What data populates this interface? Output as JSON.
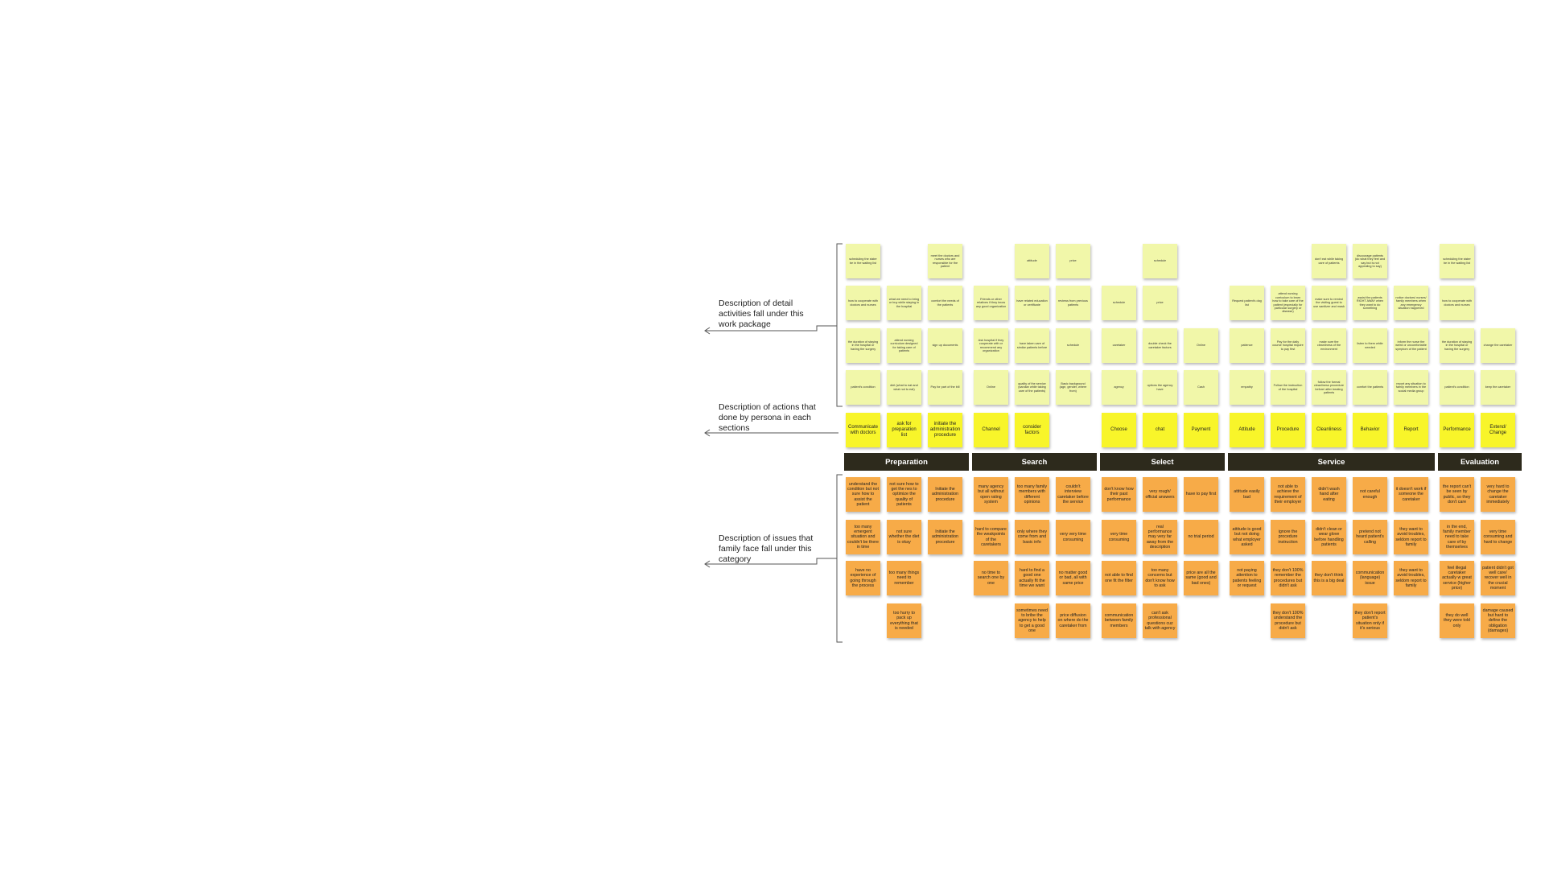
{
  "labels": {
    "detail": "Description of detail activities fall under this work package",
    "actions": "Description of actions that done by persona in each sections",
    "issues": "Description of issues that family face fall under this category"
  },
  "colors": {
    "detail_note": "#f1f7a9",
    "action_note": "#f8f52a",
    "issue_note": "#f7ab48",
    "header_bg": "#2d2a1c",
    "header_text": "#ffffff"
  },
  "sections": [
    {
      "name": "Preparation",
      "columns": [
        {
          "action": "Communicate with doctors",
          "details": [
            "scheduling the sister be in the waiting list",
            "how to cooperate with doctors and nurses",
            "the duration of staying in the hospital or having the surgery",
            "patient's condition"
          ],
          "issues": [
            "understand the condition but not sure how to assist the patient",
            "too many emergent situation and couldn't be there in time",
            "have no experience of going through the process",
            ""
          ]
        },
        {
          "action": "ask for preparation list",
          "details": [
            "",
            "what we need to bring or buy while staying in the hospital",
            "attend nursing curriculum designed for taking care of patients",
            "diet (what to eat and what not to eat)"
          ],
          "issues": [
            "not sure how to get the nes to optimize the quality of patients",
            "not sure whether the diet is okay",
            "too many things need to remember",
            "too hurry to pack up everything that is needed"
          ]
        },
        {
          "action": "initiate the administration procedure",
          "details": [
            "meet the doctors and nurses who are responsible for the patient",
            "comfort the needs of the patients",
            "sign up documents",
            "Pay for part of the bill"
          ],
          "issues": [
            "Initiate the administration procedure",
            "Initiate the administration procedure",
            "",
            ""
          ]
        }
      ]
    },
    {
      "name": "Search",
      "columns": [
        {
          "action": "Channel",
          "details": [
            "",
            "Friends or other relatives if they know any good organization",
            "Ask hospital if they cooperate with or recommend any organization",
            "Online"
          ],
          "issues": [
            "many agency but all without open rating system",
            "hard to compare the weakpoints of the caretakers",
            "no time to search one by one",
            ""
          ]
        },
        {
          "action": "consider factors",
          "details": [
            "attitude",
            "have related education or certificate",
            "have taken care of similar patients before",
            "quality of the service (sandiar while taking care of the patients)"
          ],
          "issues": [
            "too many family members with different opinions",
            "only where they come from and basic info",
            "hard to find a good one actually fit the time we want",
            "sometimes need to bribe the agency to help to get a good one"
          ]
        },
        {
          "action": "",
          "details": [
            "price",
            "reviews from previous patients",
            "schedule",
            "Basic background (age, gender, where from)"
          ],
          "issues": [
            "couldn't interview caretaker before the service",
            "very very time consuming",
            "no matter good or bad, all with same price",
            "price diffusion on where do the caretaker from"
          ]
        }
      ]
    },
    {
      "name": "Select",
      "columns": [
        {
          "action": "Choose",
          "details": [
            "",
            "schedule",
            "caretaker",
            "agency"
          ],
          "issues": [
            "don't know how their past performance",
            "very time consuming",
            "not able to find one fit the filter",
            "communication between family members"
          ]
        },
        {
          "action": "chat",
          "details": [
            "schedule",
            "price",
            "double check the caretaker factors",
            "options the agency have"
          ],
          "issues": [
            "very rough/ official answers",
            "real performance may very far away from the description",
            "too many concerns but don't know how to ask",
            "can't ask professional questions cuz talk with agency"
          ]
        },
        {
          "action": "Payment",
          "details": [
            "",
            "",
            "Online",
            "Cash"
          ],
          "issues": [
            "have to pay first",
            "no trial period",
            "price are all the same (good and bad ones)",
            ""
          ]
        }
      ]
    },
    {
      "name": "Service",
      "columns": [
        {
          "action": "Attitude",
          "details": [
            "",
            "Request patient's dog list",
            "patience",
            "empathy"
          ],
          "issues": [
            "attitude easily bad",
            "attitude is good but not doing what employer asked",
            "not paying attention to patients feeling or request",
            ""
          ]
        },
        {
          "action": "Procedure",
          "details": [
            "",
            "attend nursing curriculum to learn how to take care of the patient (especially for particular surgery or disease)",
            "Pay for the daily course hospital require to pay first",
            "Follow the instruction of the hospital"
          ],
          "issues": [
            "not able to achieve the requirement of their employer",
            "ignore the procedure instruction",
            "they don't 100% remember the procedures but didn't ask",
            "they don't 100% understand the procedure but didn't ask"
          ]
        },
        {
          "action": "Cleanliness",
          "details": [
            "don't eat while taking care of patients",
            "make sure to remind the visiting guest to use sanitizer and mask",
            "make sure the cleanliness of the environment",
            "follow the formal cleanliness procedure before/ after treating patients"
          ],
          "issues": [
            "didn't wash hand after eating",
            "didn't clean or wear glove before handling patients",
            "they don't think this is a big deal",
            ""
          ]
        },
        {
          "action": "Behavior",
          "details": [
            "discourage patients (do what they feel and say but is not appealing to say)",
            "assist the patients RIGHT AWAY when they want to do something",
            "listen to them while needed",
            "comfort the patients"
          ],
          "issues": [
            "not careful enough",
            "pretend not heard patient's calling",
            "communication (language) issue",
            "they don't report patient's situation only if it's serious"
          ]
        },
        {
          "action": "Report",
          "details": [
            "",
            "notice doctors/ nurses/ family members when any emergency situation happened",
            "inform the nurse the weird or uncomfortable symptom of the patient",
            "report any situation to family members in the social media group"
          ],
          "issues": [
            "it doesn't work if someone the caretaker",
            "they want to avoid troubles, seldom report to family",
            "they want to avoid troubles, seldom report to family",
            ""
          ]
        }
      ]
    },
    {
      "name": "Evaluation",
      "columns": [
        {
          "action": "Performance",
          "details": [
            "scheduling the sister be in the waiting list",
            "how to cooperate with doctors and nurses",
            "the duration of staying in the hospital or having the surgery",
            "patient's condition"
          ],
          "issues": [
            "the report can't be seen by public, so they don't care",
            "in the end, family member need to take care of by themselves",
            "feel illegal caretaker actually w great service (higher price)",
            "they do well they were told only"
          ]
        },
        {
          "action": "Extend/ Change",
          "details": [
            "",
            "",
            "change the caretaker",
            "keep the caretaker"
          ],
          "issues": [
            "very hard to change the caretaker immediately",
            "very time consuming and hard to change",
            "patient didn't got well care/ recover well in the crucial moment",
            "damage caused but hard to define the obligation (damages)"
          ]
        }
      ]
    }
  ]
}
